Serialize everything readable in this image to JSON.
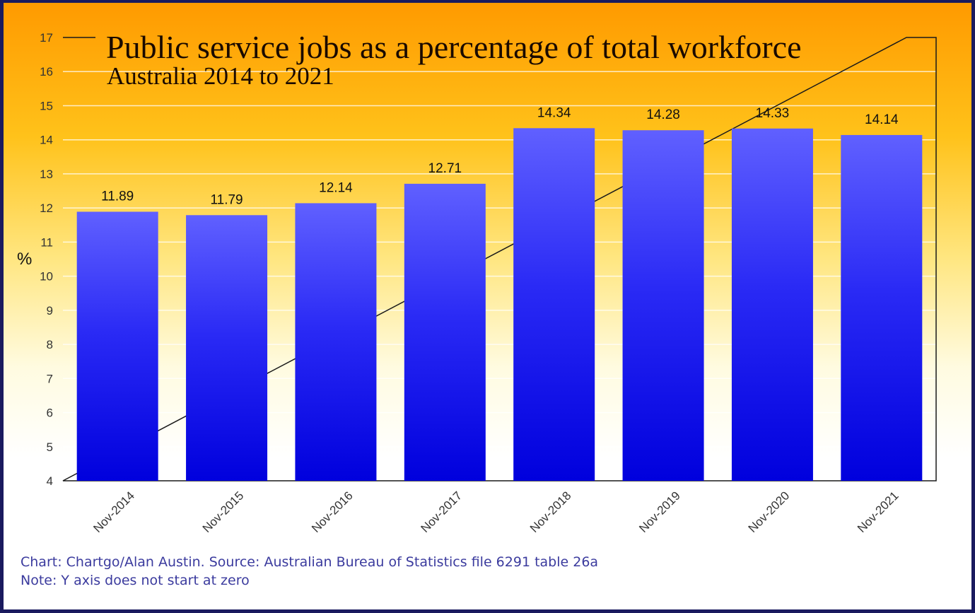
{
  "chart_data": {
    "type": "bar",
    "title": "Public service jobs as a percentage of total workforce",
    "subtitle": "Australia 2014 to 2021",
    "ylabel": "%",
    "xlabel": "",
    "ylim": [
      4,
      17
    ],
    "yticks": [
      4,
      5,
      6,
      7,
      8,
      9,
      10,
      11,
      12,
      13,
      14,
      15,
      16,
      17
    ],
    "categories": [
      "Nov-2014",
      "Nov-2015",
      "Nov-2016",
      "Nov-2017",
      "Nov-2018",
      "Nov-2019",
      "Nov-2020",
      "Nov-2021"
    ],
    "values": [
      11.89,
      11.79,
      12.14,
      12.71,
      14.34,
      14.28,
      14.33,
      14.14
    ],
    "value_labels": [
      "11.89",
      "11.79",
      "12.14",
      "12.71",
      "14.34",
      "14.28",
      "14.33",
      "14.14"
    ],
    "grid": true,
    "bar_color_top": "#6060ff",
    "bar_color_bottom": "#0000dd"
  },
  "footer": {
    "source": "Chart: Chartgo/Alan Austin. Source: Australian Bureau of Statistics file 6291 table 26a",
    "note": "Note: Y axis does not start at zero"
  }
}
